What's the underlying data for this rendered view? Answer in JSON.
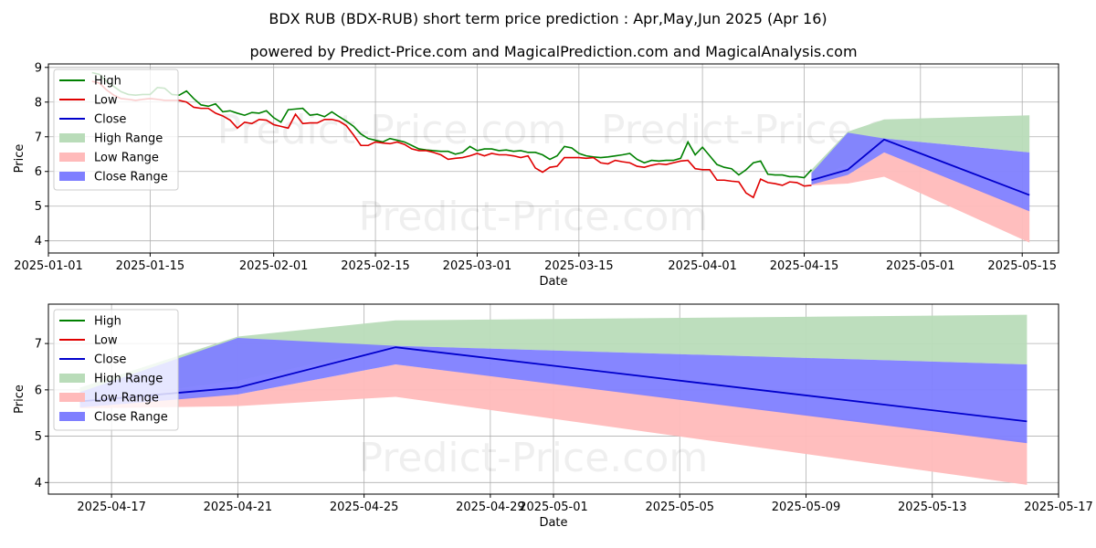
{
  "title": "BDX RUB (BDX-RUB) short term price prediction : Apr,May,Jun 2025 (Apr 16)",
  "subtitle": "powered by Predict-Price.com and MagicalPrediction.com and MagicalAnalysis.com",
  "watermark": "Predict-Price.com",
  "colors": {
    "high": "#008000",
    "low": "#e00000",
    "close": "#0000cc",
    "high_range": "#b9dcb9",
    "low_range": "#ffbaba",
    "close_range": "#7f7fff"
  },
  "chart_data": [
    {
      "type": "line",
      "xlabel": "Date",
      "ylabel": "Price",
      "x_ticks": [
        "2025-01-01",
        "2025-01-15",
        "2025-02-01",
        "2025-02-15",
        "2025-03-01",
        "2025-03-15",
        "2025-04-01",
        "2025-04-15",
        "2025-05-01",
        "2025-05-15"
      ],
      "y_ticks": [
        4,
        5,
        6,
        7,
        8,
        9
      ],
      "xlim": [
        "2025-01-01",
        "2025-05-20"
      ],
      "ylim": [
        3.65,
        9.1
      ],
      "grid": true,
      "legend": "top-left",
      "legend_entries": [
        "High",
        "Low",
        "Close",
        "High Range",
        "Low Range",
        "Close Range"
      ],
      "series": [
        {
          "name": "High",
          "x": [
            "2025-01-07",
            "2025-01-08",
            "2025-01-09",
            "2025-01-10",
            "2025-01-11",
            "2025-01-12",
            "2025-01-13",
            "2025-01-14",
            "2025-01-15",
            "2025-01-16",
            "2025-01-17",
            "2025-01-18",
            "2025-01-19",
            "2025-01-20",
            "2025-01-21",
            "2025-01-22",
            "2025-01-23",
            "2025-01-24",
            "2025-01-25",
            "2025-01-26",
            "2025-01-27",
            "2025-01-28",
            "2025-01-29",
            "2025-01-30",
            "2025-01-31",
            "2025-02-01",
            "2025-02-02",
            "2025-02-03",
            "2025-02-04",
            "2025-02-05",
            "2025-02-06",
            "2025-02-07",
            "2025-02-08",
            "2025-02-09",
            "2025-02-10",
            "2025-02-11",
            "2025-02-12",
            "2025-02-13",
            "2025-02-14",
            "2025-02-15",
            "2025-02-16",
            "2025-02-17",
            "2025-02-18",
            "2025-02-19",
            "2025-02-20",
            "2025-02-21",
            "2025-02-22",
            "2025-02-23",
            "2025-02-24",
            "2025-02-25",
            "2025-02-26",
            "2025-02-27",
            "2025-02-28",
            "2025-03-01",
            "2025-03-02",
            "2025-03-03",
            "2025-03-04",
            "2025-03-05",
            "2025-03-06",
            "2025-03-07",
            "2025-03-08",
            "2025-03-09",
            "2025-03-10",
            "2025-03-11",
            "2025-03-12",
            "2025-03-13",
            "2025-03-14",
            "2025-03-15",
            "2025-03-16",
            "2025-03-17",
            "2025-03-18",
            "2025-03-19",
            "2025-03-20",
            "2025-03-21",
            "2025-03-22",
            "2025-03-23",
            "2025-03-24",
            "2025-03-25",
            "2025-03-26",
            "2025-03-27",
            "2025-03-28",
            "2025-03-29",
            "2025-03-30",
            "2025-03-31",
            "2025-04-01",
            "2025-04-02",
            "2025-04-03",
            "2025-04-04",
            "2025-04-05",
            "2025-04-06",
            "2025-04-07",
            "2025-04-08",
            "2025-04-09",
            "2025-04-10",
            "2025-04-11",
            "2025-04-12",
            "2025-04-13",
            "2025-04-14",
            "2025-04-15",
            "2025-04-16"
          ],
          "values": [
            8.85,
            8.8,
            8.6,
            8.45,
            8.3,
            8.22,
            8.2,
            8.22,
            8.22,
            8.42,
            8.4,
            8.22,
            8.2,
            8.32,
            8.1,
            7.92,
            7.88,
            7.95,
            7.72,
            7.75,
            7.68,
            7.62,
            7.7,
            7.68,
            7.75,
            7.55,
            7.42,
            7.78,
            7.8,
            7.82,
            7.62,
            7.65,
            7.58,
            7.72,
            7.58,
            7.45,
            7.3,
            7.08,
            6.95,
            6.9,
            6.85,
            6.95,
            6.9,
            6.85,
            6.75,
            6.65,
            6.62,
            6.6,
            6.58,
            6.58,
            6.5,
            6.55,
            6.72,
            6.6,
            6.65,
            6.65,
            6.6,
            6.62,
            6.58,
            6.6,
            6.55,
            6.55,
            6.48,
            6.35,
            6.45,
            6.72,
            6.68,
            6.52,
            6.45,
            6.42,
            6.4,
            6.42,
            6.45,
            6.48,
            6.52,
            6.35,
            6.25,
            6.32,
            6.3,
            6.32,
            6.32,
            6.38,
            6.85,
            6.48,
            6.7,
            6.45,
            6.2,
            6.12,
            6.08,
            5.9,
            6.05,
            6.25,
            6.3,
            5.92,
            5.9,
            5.9,
            5.85,
            5.85,
            5.82,
            6.05
          ]
        },
        {
          "name": "Low",
          "x": [
            "2025-01-07",
            "2025-01-08",
            "2025-01-09",
            "2025-01-10",
            "2025-01-11",
            "2025-01-12",
            "2025-01-13",
            "2025-01-14",
            "2025-01-15",
            "2025-01-16",
            "2025-01-17",
            "2025-01-18",
            "2025-01-19",
            "2025-01-20",
            "2025-01-21",
            "2025-01-22",
            "2025-01-23",
            "2025-01-24",
            "2025-01-25",
            "2025-01-26",
            "2025-01-27",
            "2025-01-28",
            "2025-01-29",
            "2025-01-30",
            "2025-01-31",
            "2025-02-01",
            "2025-02-02",
            "2025-02-03",
            "2025-02-04",
            "2025-02-05",
            "2025-02-06",
            "2025-02-07",
            "2025-02-08",
            "2025-02-09",
            "2025-02-10",
            "2025-02-11",
            "2025-02-12",
            "2025-02-13",
            "2025-02-14",
            "2025-02-15",
            "2025-02-16",
            "2025-02-17",
            "2025-02-18",
            "2025-02-19",
            "2025-02-20",
            "2025-02-21",
            "2025-02-22",
            "2025-02-23",
            "2025-02-24",
            "2025-02-25",
            "2025-02-26",
            "2025-02-27",
            "2025-02-28",
            "2025-03-01",
            "2025-03-02",
            "2025-03-03",
            "2025-03-04",
            "2025-03-05",
            "2025-03-06",
            "2025-03-07",
            "2025-03-08",
            "2025-03-09",
            "2025-03-10",
            "2025-03-11",
            "2025-03-12",
            "2025-03-13",
            "2025-03-14",
            "2025-03-15",
            "2025-03-16",
            "2025-03-17",
            "2025-03-18",
            "2025-03-19",
            "2025-03-20",
            "2025-03-21",
            "2025-03-22",
            "2025-03-23",
            "2025-03-24",
            "2025-03-25",
            "2025-03-26",
            "2025-03-27",
            "2025-03-28",
            "2025-03-29",
            "2025-03-30",
            "2025-03-31",
            "2025-04-01",
            "2025-04-02",
            "2025-04-03",
            "2025-04-04",
            "2025-04-05",
            "2025-04-06",
            "2025-04-07",
            "2025-04-08",
            "2025-04-09",
            "2025-04-10",
            "2025-04-11",
            "2025-04-12",
            "2025-04-13",
            "2025-04-14",
            "2025-04-15",
            "2025-04-16"
          ],
          "values": [
            8.6,
            8.55,
            8.35,
            8.2,
            8.1,
            8.08,
            8.05,
            8.08,
            8.1,
            8.08,
            8.05,
            8.05,
            8.05,
            8.0,
            7.85,
            7.82,
            7.82,
            7.68,
            7.6,
            7.48,
            7.25,
            7.42,
            7.38,
            7.5,
            7.48,
            7.35,
            7.3,
            7.25,
            7.65,
            7.38,
            7.4,
            7.4,
            7.5,
            7.5,
            7.45,
            7.32,
            7.05,
            6.75,
            6.75,
            6.85,
            6.82,
            6.8,
            6.85,
            6.78,
            6.65,
            6.6,
            6.6,
            6.55,
            6.48,
            6.35,
            6.38,
            6.4,
            6.45,
            6.52,
            6.45,
            6.52,
            6.48,
            6.48,
            6.45,
            6.4,
            6.45,
            6.1,
            5.98,
            6.12,
            6.15,
            6.4,
            6.4,
            6.4,
            6.38,
            6.4,
            6.25,
            6.22,
            6.32,
            6.28,
            6.25,
            6.15,
            6.12,
            6.18,
            6.22,
            6.2,
            6.25,
            6.3,
            6.32,
            6.08,
            6.05,
            6.05,
            5.75,
            5.75,
            5.72,
            5.7,
            5.38,
            5.25,
            5.78,
            5.68,
            5.65,
            5.6,
            5.7,
            5.68,
            5.58,
            5.6
          ]
        }
      ],
      "ranges": [
        {
          "name": "High Range",
          "x": [
            "2025-04-16",
            "2025-04-21",
            "2025-04-26",
            "2025-05-16"
          ],
          "upper": [
            6.05,
            7.15,
            7.5,
            7.62
          ],
          "lower": [
            5.75,
            6.2,
            6.95,
            6.55
          ]
        },
        {
          "name": "Low Range",
          "x": [
            "2025-04-16",
            "2025-04-21",
            "2025-04-26",
            "2025-05-16"
          ],
          "upper": [
            5.75,
            5.9,
            6.55,
            4.9
          ],
          "lower": [
            5.6,
            5.65,
            5.85,
            3.95
          ]
        },
        {
          "name": "Close Range",
          "x": [
            "2025-04-16",
            "2025-04-21",
            "2025-04-26",
            "2025-05-16"
          ],
          "upper": [
            5.95,
            7.12,
            6.95,
            6.55
          ],
          "lower": [
            5.62,
            5.9,
            6.55,
            4.85
          ]
        }
      ],
      "close_forecast": {
        "name": "Close",
        "x": [
          "2025-04-16",
          "2025-04-21",
          "2025-04-26",
          "2025-05-16"
        ],
        "values": [
          5.75,
          6.05,
          6.92,
          5.32
        ]
      }
    },
    {
      "type": "line",
      "xlabel": "Date",
      "ylabel": "Price",
      "x_ticks": [
        "2025-04-17",
        "2025-04-21",
        "2025-04-25",
        "2025-04-29",
        "2025-05-01",
        "2025-05-05",
        "2025-05-09",
        "2025-05-13",
        "2025-05-17"
      ],
      "y_ticks": [
        4,
        5,
        6,
        7
      ],
      "xlim": [
        "2025-04-15",
        "2025-05-17"
      ],
      "ylim": [
        3.75,
        7.85
      ],
      "grid": true,
      "legend": "top-left",
      "legend_entries": [
        "High",
        "Low",
        "Close",
        "High Range",
        "Low Range",
        "Close Range"
      ],
      "ranges": [
        {
          "name": "High Range",
          "x": [
            "2025-04-16",
            "2025-04-21",
            "2025-04-26",
            "2025-05-16"
          ],
          "upper": [
            6.05,
            7.15,
            7.5,
            7.62
          ],
          "lower": [
            5.75,
            6.2,
            6.95,
            6.55
          ]
        },
        {
          "name": "Low Range",
          "x": [
            "2025-04-16",
            "2025-04-21",
            "2025-04-26",
            "2025-05-16"
          ],
          "upper": [
            5.75,
            5.9,
            6.55,
            4.9
          ],
          "lower": [
            5.6,
            5.65,
            5.85,
            3.95
          ]
        },
        {
          "name": "Close Range",
          "x": [
            "2025-04-16",
            "2025-04-21",
            "2025-04-26",
            "2025-05-16"
          ],
          "upper": [
            5.95,
            7.12,
            6.95,
            6.55
          ],
          "lower": [
            5.62,
            5.9,
            6.55,
            4.85
          ]
        }
      ],
      "close_forecast": {
        "name": "Close",
        "x": [
          "2025-04-16",
          "2025-04-21",
          "2025-04-26",
          "2025-05-16"
        ],
        "values": [
          5.75,
          6.05,
          6.92,
          5.32
        ]
      }
    }
  ]
}
